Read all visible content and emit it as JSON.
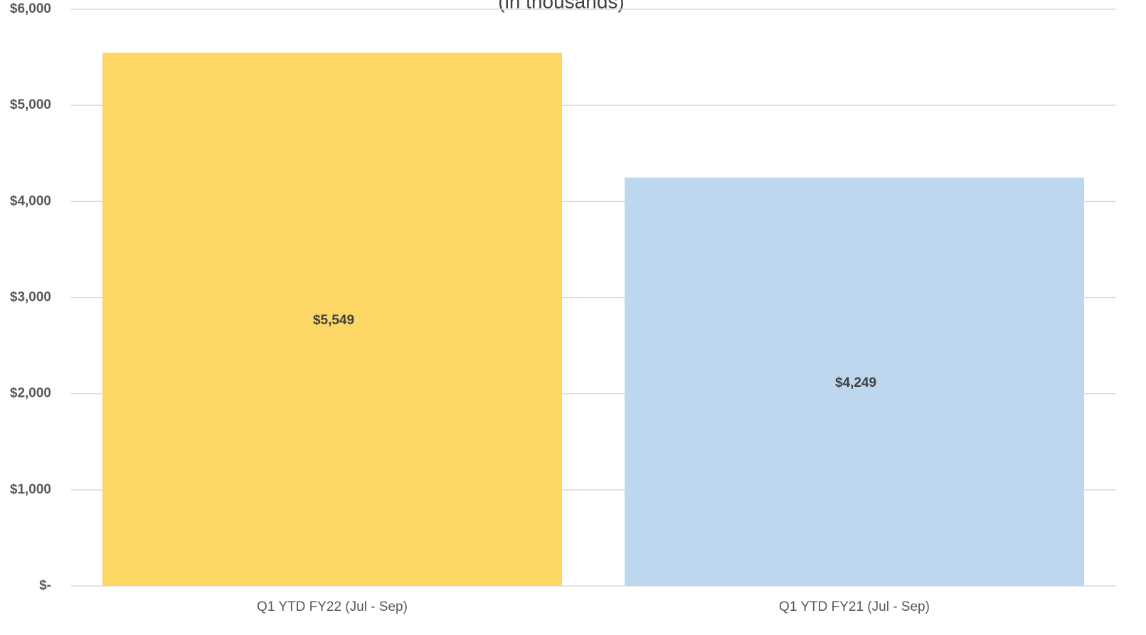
{
  "chart_data": {
    "type": "bar",
    "subtitle": "(in thousands)",
    "categories": [
      "Q1 YTD FY22 (Jul - Sep)",
      "Q1 YTD FY21 (Jul - Sep)"
    ],
    "values": [
      5549,
      4249
    ],
    "value_labels": [
      "$5,549",
      "$4,249"
    ],
    "colors": [
      "#fcd766",
      "#bdd7ee"
    ],
    "ylim": [
      0,
      6000
    ],
    "yticks": [
      {
        "value": 0,
        "label": "$-"
      },
      {
        "value": 1000,
        "label": "$1,000"
      },
      {
        "value": 2000,
        "label": "$2,000"
      },
      {
        "value": 3000,
        "label": "$3,000"
      },
      {
        "value": 4000,
        "label": "$4,000"
      },
      {
        "value": 5000,
        "label": "$5,000"
      },
      {
        "value": 6000,
        "label": "$6,000"
      }
    ],
    "grid": true
  }
}
